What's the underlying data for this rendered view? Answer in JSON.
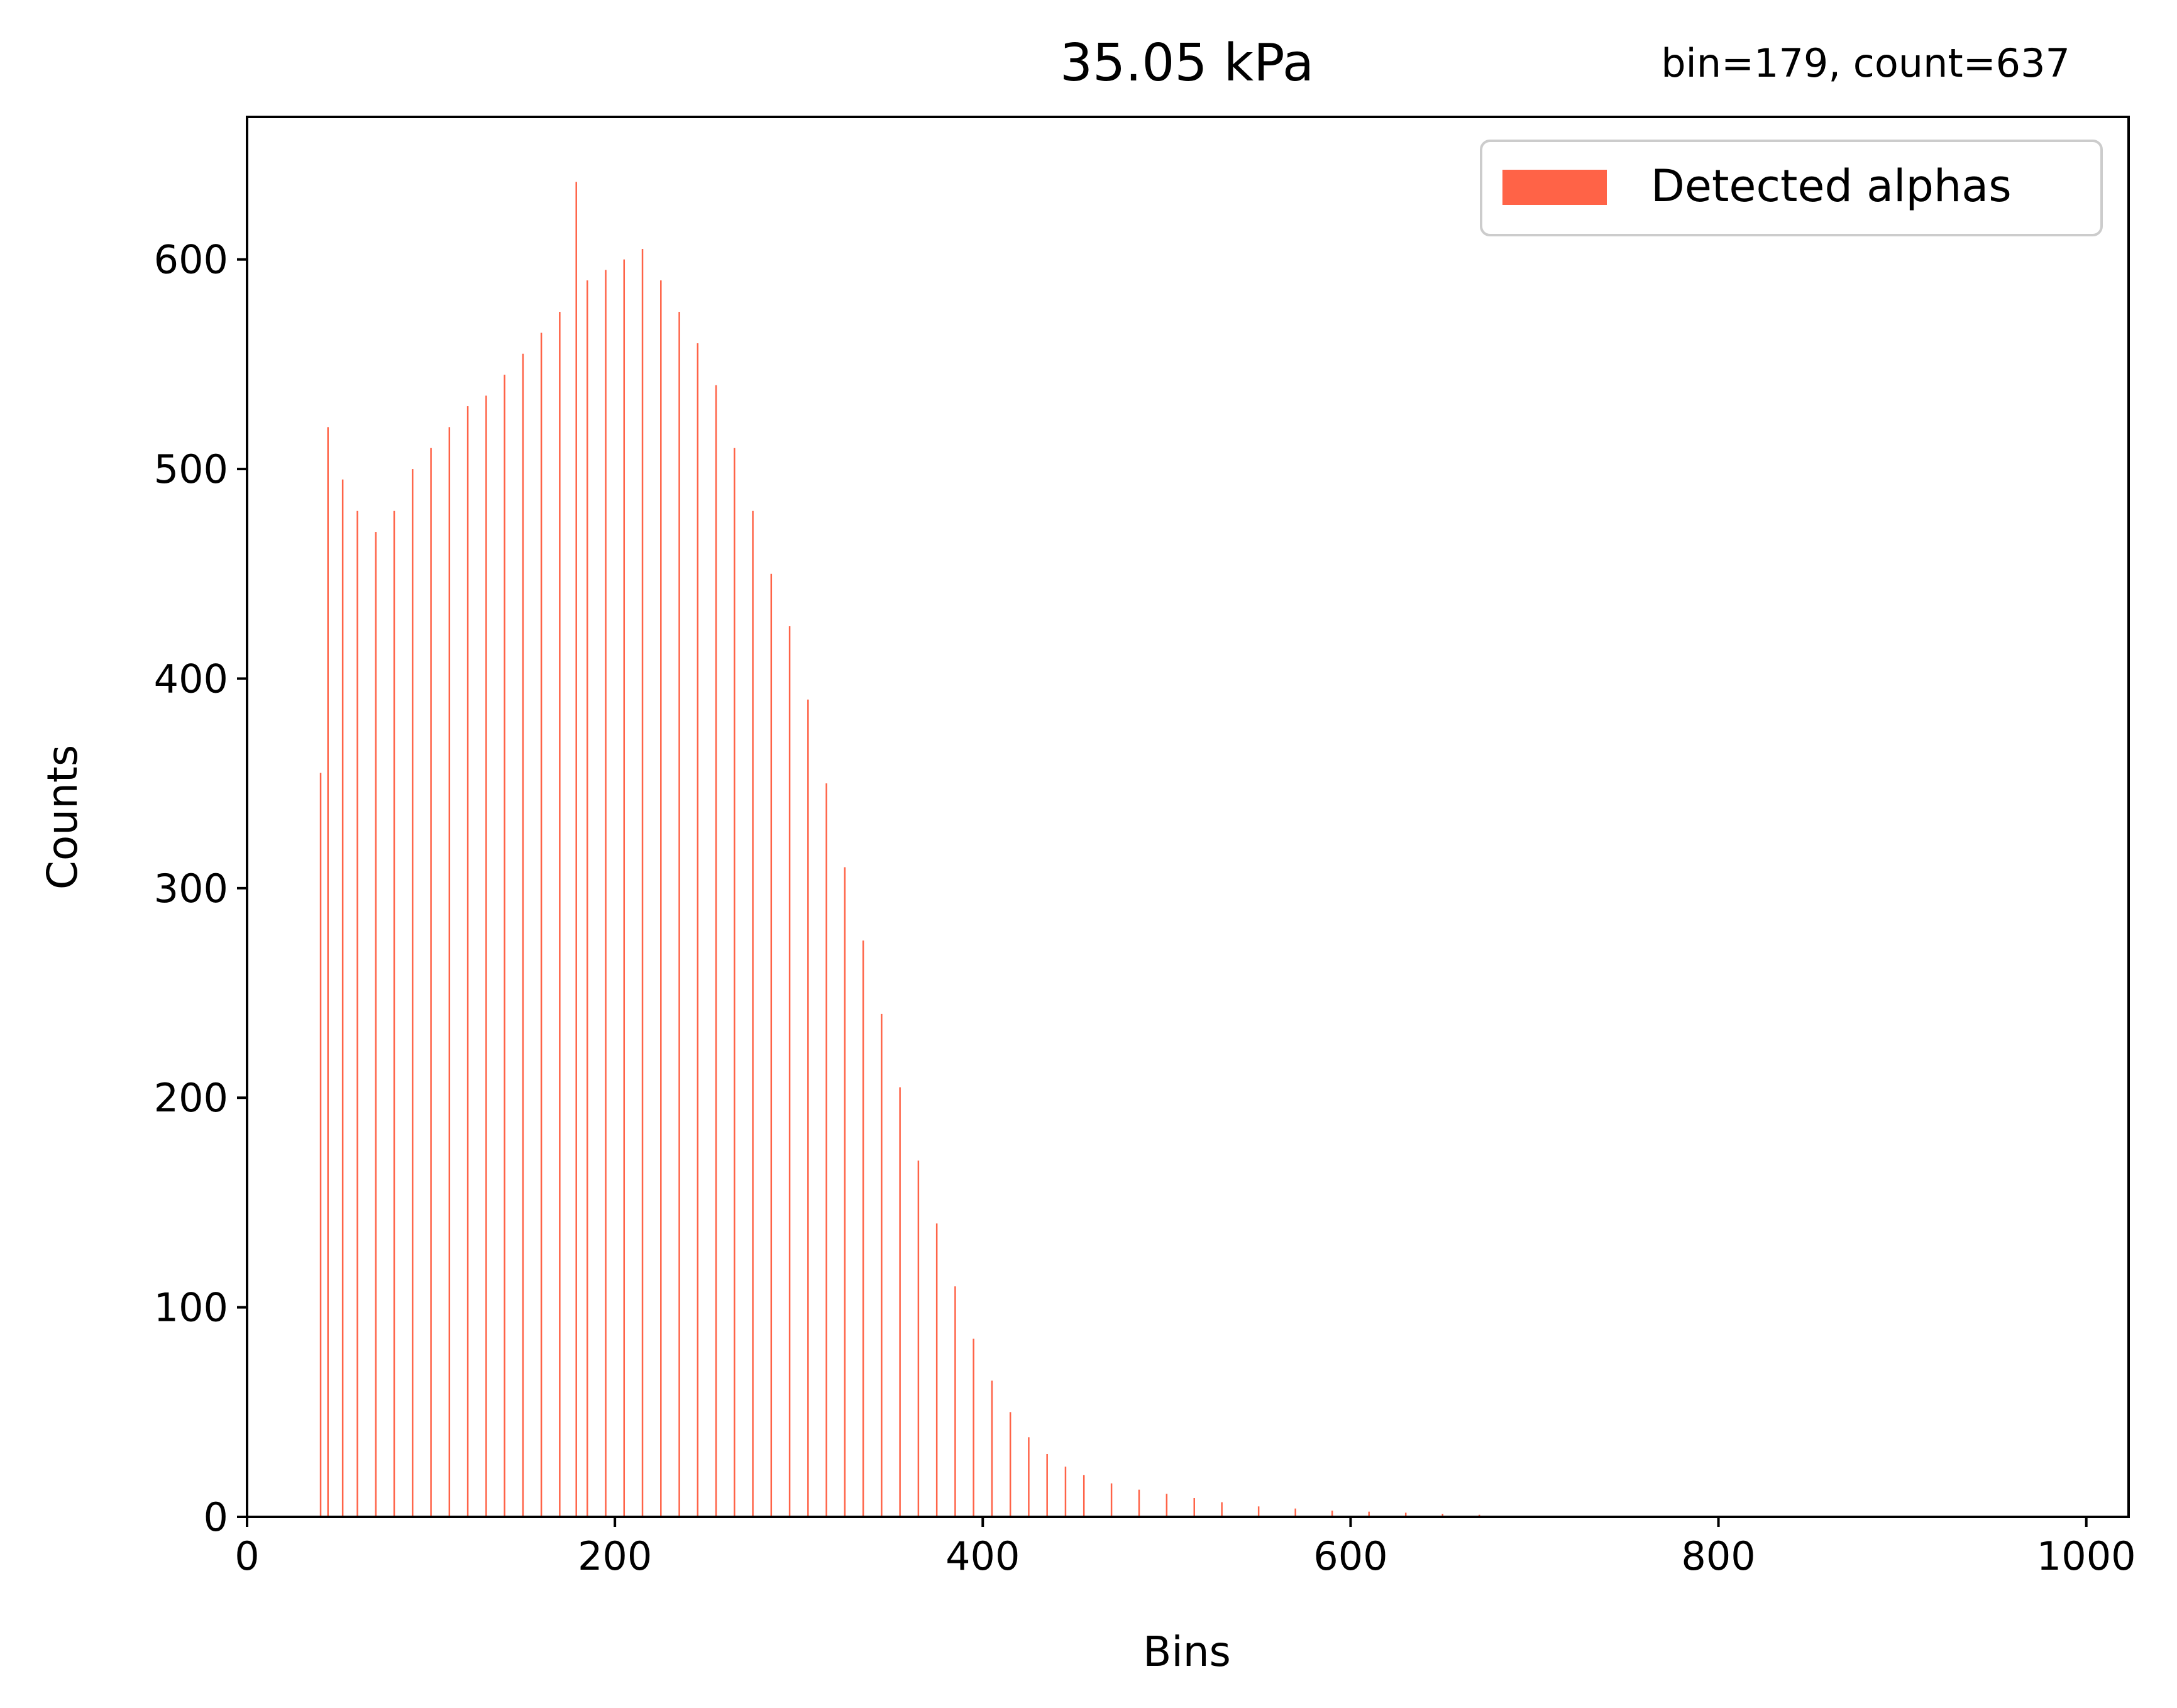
{
  "chart_data": {
    "type": "bar",
    "title": "35.05 kPa",
    "annotation": "bin=179, count=637",
    "xlabel": "Bins",
    "ylabel": "Counts",
    "xlim": [
      0,
      1023
    ],
    "ylim": [
      0,
      668
    ],
    "xticks": [
      0,
      200,
      400,
      600,
      800,
      1000
    ],
    "yticks": [
      0,
      100,
      200,
      300,
      400,
      500,
      600
    ],
    "grid": false,
    "legend_position": "top-right",
    "bar_color": "#ff6347",
    "series": [
      {
        "name": "Detected alphas",
        "points": [
          [
            40,
            355
          ],
          [
            44,
            520
          ],
          [
            52,
            495
          ],
          [
            60,
            480
          ],
          [
            70,
            470
          ],
          [
            80,
            480
          ],
          [
            90,
            500
          ],
          [
            100,
            510
          ],
          [
            110,
            520
          ],
          [
            120,
            530
          ],
          [
            130,
            535
          ],
          [
            140,
            545
          ],
          [
            150,
            555
          ],
          [
            160,
            565
          ],
          [
            170,
            575
          ],
          [
            179,
            637
          ],
          [
            185,
            590
          ],
          [
            195,
            595
          ],
          [
            205,
            600
          ],
          [
            215,
            605
          ],
          [
            225,
            590
          ],
          [
            235,
            575
          ],
          [
            245,
            560
          ],
          [
            255,
            540
          ],
          [
            265,
            510
          ],
          [
            275,
            480
          ],
          [
            285,
            450
          ],
          [
            295,
            425
          ],
          [
            305,
            390
          ],
          [
            315,
            350
          ],
          [
            325,
            310
          ],
          [
            335,
            275
          ],
          [
            345,
            240
          ],
          [
            355,
            205
          ],
          [
            365,
            170
          ],
          [
            375,
            140
          ],
          [
            385,
            110
          ],
          [
            395,
            85
          ],
          [
            405,
            65
          ],
          [
            415,
            50
          ],
          [
            425,
            38
          ],
          [
            435,
            30
          ],
          [
            445,
            24
          ],
          [
            455,
            20
          ],
          [
            470,
            16
          ],
          [
            485,
            13
          ],
          [
            500,
            11
          ],
          [
            515,
            9
          ],
          [
            530,
            7
          ],
          [
            550,
            5
          ],
          [
            570,
            4
          ],
          [
            590,
            3
          ],
          [
            610,
            2.5
          ],
          [
            630,
            2
          ],
          [
            650,
            1.5
          ],
          [
            670,
            1
          ],
          [
            690,
            0.6
          ],
          [
            700,
            0
          ]
        ]
      }
    ]
  }
}
